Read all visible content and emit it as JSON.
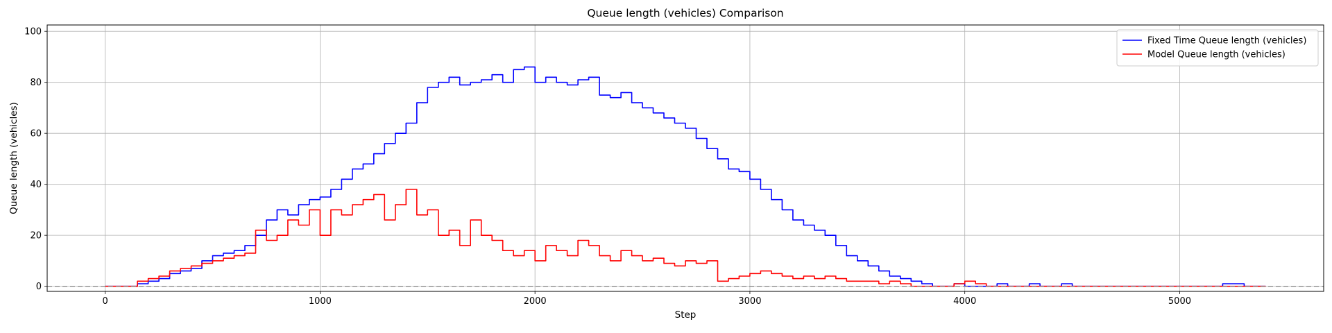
{
  "chart_data": {
    "type": "line",
    "title": "Queue length (vehicles) Comparison",
    "xlabel": "Step",
    "ylabel": "Queue length (vehicles)",
    "xlim": [
      -270,
      5670
    ],
    "ylim": [
      -2,
      102.5
    ],
    "xticks": [
      0,
      1000,
      2000,
      3000,
      4000,
      5000
    ],
    "xtick_labels": [
      "0",
      "1000",
      "2000",
      "3000",
      "4000",
      "5000"
    ],
    "yticks": [
      0,
      20,
      40,
      60,
      80,
      100
    ],
    "ytick_labels": [
      "0",
      "20",
      "40",
      "60",
      "80",
      "100"
    ],
    "grid": true,
    "legend_position": "top-right",
    "reference_line": {
      "y": 0,
      "style": "dashed",
      "color": "#808080"
    },
    "series": [
      {
        "name": "Fixed Time Queue length (vehicles)",
        "color": "#0000ff",
        "x": [
          0,
          100,
          150,
          200,
          250,
          300,
          350,
          400,
          450,
          500,
          550,
          600,
          650,
          700,
          750,
          800,
          850,
          900,
          950,
          1000,
          1050,
          1100,
          1150,
          1200,
          1250,
          1300,
          1350,
          1400,
          1450,
          1500,
          1550,
          1600,
          1650,
          1700,
          1750,
          1800,
          1850,
          1900,
          1950,
          2000,
          2050,
          2100,
          2150,
          2200,
          2250,
          2300,
          2350,
          2400,
          2450,
          2500,
          2550,
          2600,
          2650,
          2700,
          2750,
          2800,
          2850,
          2900,
          2950,
          3000,
          3050,
          3100,
          3150,
          3200,
          3250,
          3300,
          3350,
          3400,
          3450,
          3500,
          3550,
          3600,
          3650,
          3700,
          3750,
          3800,
          3850,
          3900,
          3950,
          4000,
          4050,
          4100,
          4150,
          4200,
          4250,
          4300,
          4350,
          4400,
          4450,
          4500,
          4600,
          4700,
          4800,
          4900,
          5000,
          5100,
          5200,
          5300,
          5400
        ],
        "y": [
          0,
          0,
          1,
          2,
          3,
          5,
          6,
          7,
          10,
          12,
          13,
          14,
          16,
          20,
          26,
          30,
          28,
          32,
          34,
          35,
          38,
          42,
          46,
          48,
          52,
          56,
          60,
          64,
          72,
          78,
          80,
          82,
          79,
          80,
          81,
          83,
          80,
          85,
          86,
          80,
          82,
          80,
          79,
          81,
          82,
          75,
          74,
          76,
          72,
          70,
          68,
          66,
          64,
          62,
          58,
          54,
          50,
          46,
          45,
          42,
          38,
          34,
          30,
          26,
          24,
          22,
          20,
          16,
          12,
          10,
          8,
          6,
          4,
          3,
          2,
          1,
          0,
          0,
          1,
          0,
          0,
          0,
          1,
          0,
          0,
          1,
          0,
          0,
          1,
          0,
          0,
          0,
          0,
          0,
          0,
          0,
          1,
          0,
          0
        ]
      },
      {
        "name": "Model Queue length (vehicles)",
        "color": "#ff0000",
        "x": [
          0,
          100,
          150,
          200,
          250,
          300,
          350,
          400,
          450,
          500,
          550,
          600,
          650,
          700,
          750,
          800,
          850,
          900,
          950,
          1000,
          1050,
          1100,
          1150,
          1200,
          1250,
          1300,
          1350,
          1400,
          1450,
          1500,
          1550,
          1600,
          1650,
          1700,
          1750,
          1800,
          1850,
          1900,
          1950,
          2000,
          2050,
          2100,
          2150,
          2200,
          2250,
          2300,
          2350,
          2400,
          2450,
          2500,
          2550,
          2600,
          2650,
          2700,
          2750,
          2800,
          2850,
          2900,
          2950,
          3000,
          3050,
          3100,
          3150,
          3200,
          3250,
          3300,
          3350,
          3400,
          3450,
          3500,
          3550,
          3600,
          3650,
          3700,
          3750,
          3800,
          3850,
          3900,
          3950,
          4000,
          4050,
          4100,
          4150,
          4200,
          4250,
          4300,
          4350,
          4400,
          4450,
          4500,
          4600,
          4700,
          4800,
          4900,
          5000,
          5100,
          5200,
          5300,
          5400
        ],
        "y": [
          0,
          0,
          2,
          3,
          4,
          6,
          7,
          8,
          9,
          10,
          11,
          12,
          13,
          22,
          18,
          20,
          26,
          24,
          30,
          20,
          30,
          28,
          32,
          34,
          36,
          26,
          32,
          38,
          28,
          30,
          20,
          22,
          16,
          26,
          20,
          18,
          14,
          12,
          14,
          10,
          16,
          14,
          12,
          18,
          16,
          12,
          10,
          14,
          12,
          10,
          11,
          9,
          8,
          10,
          9,
          10,
          2,
          3,
          4,
          5,
          6,
          5,
          4,
          3,
          4,
          3,
          4,
          3,
          2,
          2,
          2,
          1,
          2,
          1,
          0,
          0,
          0,
          0,
          1,
          2,
          1,
          0,
          0,
          0,
          0,
          0,
          0,
          0,
          0,
          0,
          0,
          0,
          0,
          0,
          0,
          0,
          0,
          0,
          0
        ]
      }
    ]
  }
}
